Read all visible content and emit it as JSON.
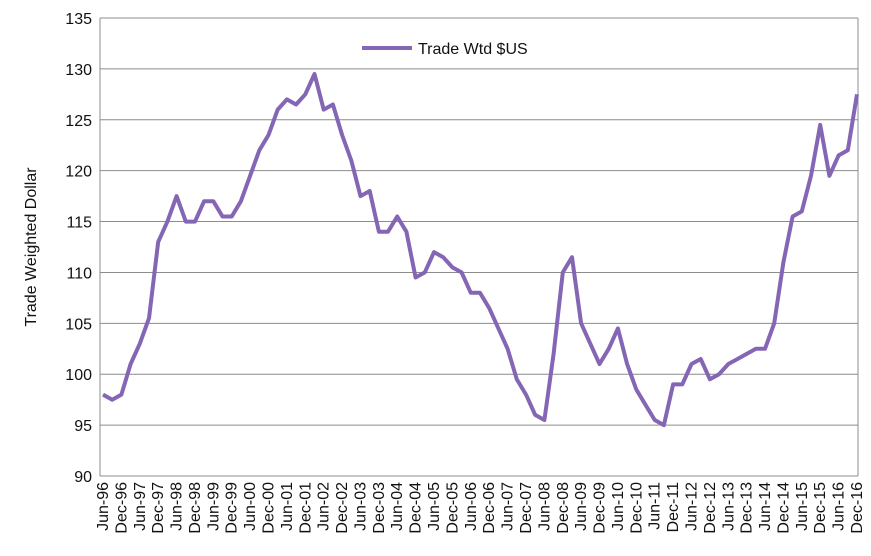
{
  "chart_data": {
    "type": "line",
    "y_label": "Trade Weighted Dollar",
    "categories": [
      "Jun-96",
      null,
      "Dec-96",
      null,
      "Jun-97",
      null,
      "Dec-97",
      null,
      "Jun-98",
      null,
      "Dec-98",
      null,
      "Jun-99",
      null,
      "Dec-99",
      null,
      "Jun-00",
      null,
      "Dec-00",
      null,
      "Jun-01",
      null,
      "Dec-01",
      null,
      "Jun-02",
      null,
      "Dec-02",
      null,
      "Jun-03",
      null,
      "Dec-03",
      null,
      "Jun-04",
      null,
      "Dec-04",
      null,
      "Jun-05",
      null,
      "Dec-05",
      null,
      "Jun-06",
      null,
      "Dec-06",
      null,
      "Jun-07",
      null,
      "Dec-07",
      null,
      "Jun-08",
      null,
      "Dec-08",
      null,
      "Jun-09",
      null,
      "Dec-09",
      null,
      "Jun-10",
      null,
      "Dec-10",
      null,
      "Jun-11",
      null,
      "Dec-11",
      null,
      "Jun-12",
      null,
      "Dec-12",
      null,
      "Jun-13",
      null,
      "Dec-13",
      null,
      "Jun-14",
      null,
      "Dec-14",
      null,
      "Jun-15",
      null,
      "Dec-15",
      null,
      "Jun-16",
      null,
      "Dec-16"
    ],
    "series": [
      {
        "name": "Trade Wtd $US",
        "color": "#8466b4",
        "values": [
          98,
          97.5,
          98,
          101,
          103,
          105.5,
          113,
          115,
          117.5,
          115,
          115,
          117,
          117,
          115.5,
          115.5,
          117,
          119.5,
          122,
          123.5,
          126,
          127,
          126.5,
          127.5,
          129.5,
          126,
          126.5,
          123.5,
          121,
          117.5,
          118,
          114,
          114,
          115.5,
          114,
          109.5,
          110,
          112,
          111.5,
          110.5,
          110,
          108,
          108,
          106.5,
          104.5,
          102.5,
          99.5,
          98,
          96,
          95.5,
          102,
          110,
          111.5,
          105,
          103,
          101,
          102.5,
          104.5,
          101,
          98.5,
          97,
          95.5,
          95,
          99,
          99,
          101,
          101.5,
          99.5,
          100,
          101,
          101.5,
          102,
          102.5,
          102.5,
          105,
          111,
          115.5,
          116,
          119.5,
          124.5,
          119.5,
          121.5,
          122,
          127.5
        ]
      }
    ],
    "ylim": [
      90,
      135
    ],
    "yticks": [
      90,
      95,
      100,
      105,
      110,
      115,
      120,
      125,
      130,
      135
    ],
    "grid": true,
    "legend": "top"
  }
}
